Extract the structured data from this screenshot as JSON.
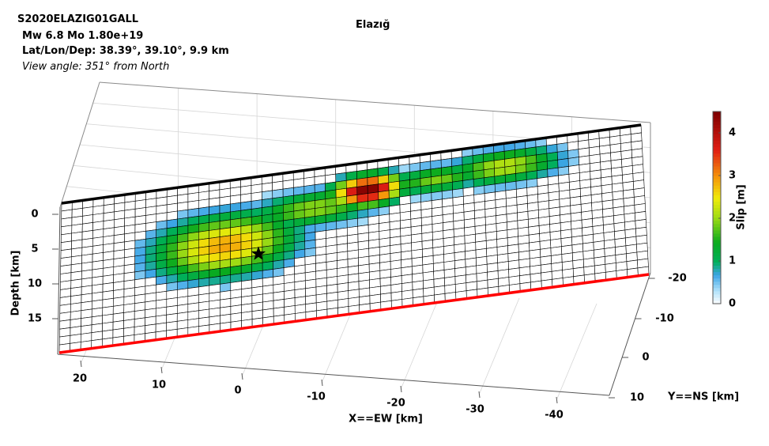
{
  "header": {
    "event_id": "S2020ELAZIG01GALL",
    "mag_line": "Mw 6.8    Mo 1.80e+19",
    "loc_line": "Lat/Lon/Dep: 38.39°, 39.10°, 9.9 km",
    "view_line": "View angle: 351° from North"
  },
  "chart_data": {
    "type": "heatmap",
    "title": "Elazığ",
    "xlabel": "X==EW [km]",
    "ylabel": "Y==NS [km]",
    "zlabel": "Depth [km]",
    "x_ticks": [
      "20",
      "10",
      "0",
      "-10",
      "-20",
      "-30",
      "-40"
    ],
    "y_ticks": [
      "-20",
      "-10",
      "0",
      "10"
    ],
    "z_ticks": [
      "0",
      "5",
      "10",
      "15"
    ],
    "colorbar": {
      "label": "Slip [m]",
      "ticks": [
        "0",
        "1",
        "2",
        "3",
        "4"
      ],
      "range": [
        0,
        4.5
      ]
    },
    "fault_grid": {
      "columns": 55,
      "rows": 19
    },
    "grid": true,
    "hypocenter_marker": "star-icon",
    "colors": {
      "fault_top_edge": "#000000",
      "fault_bottom_edge": "#ff0000",
      "grid_line": "#000000"
    },
    "slip_patches": [
      {
        "center_col": 15.5,
        "center_row": 8.2,
        "rx": 7.5,
        "ry": 4.5,
        "peak": 2.9
      },
      {
        "center_col": 29.0,
        "center_row": 3.6,
        "rx": 3.8,
        "ry": 2.2,
        "peak": 4.5
      },
      {
        "center_col": 42.0,
        "center_row": 2.9,
        "rx": 6.0,
        "ry": 2.5,
        "peak": 2.2
      },
      {
        "center_col": 24.0,
        "center_row": 5.0,
        "rx": 7.0,
        "ry": 2.6,
        "peak": 2.0
      },
      {
        "center_col": 35.5,
        "center_row": 3.4,
        "rx": 5.0,
        "ry": 2.0,
        "peak": 1.9
      }
    ]
  }
}
